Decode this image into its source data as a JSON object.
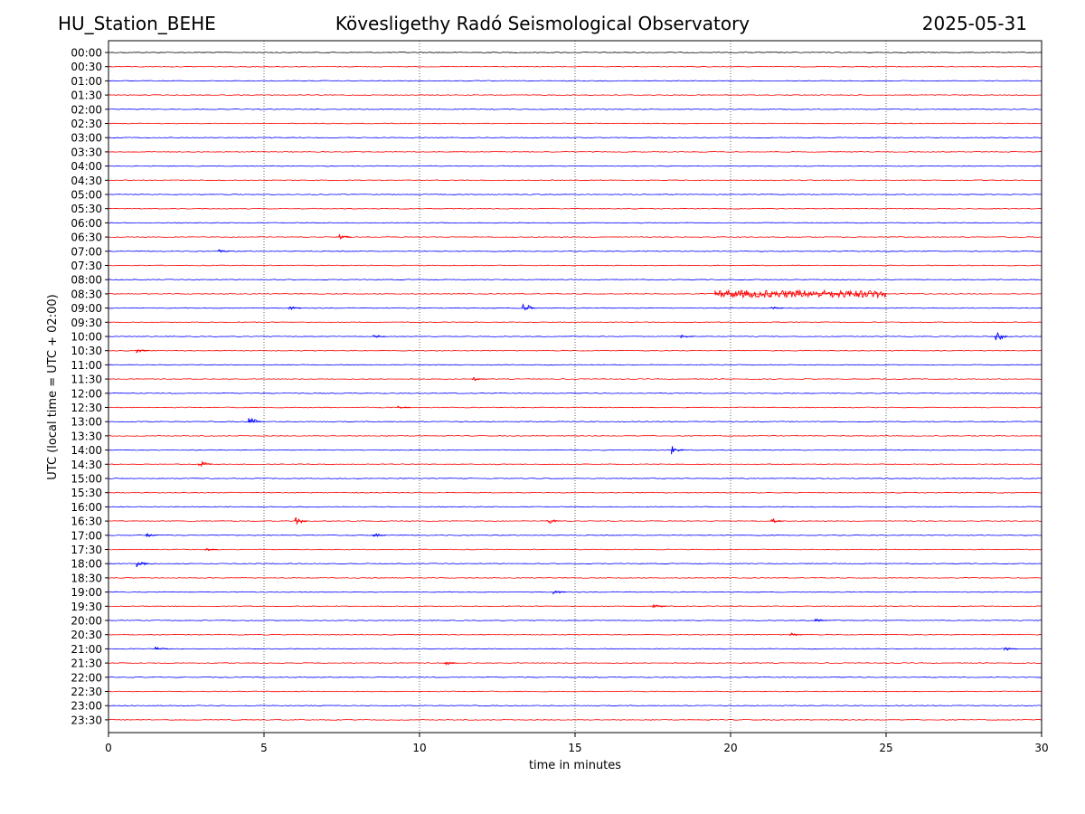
{
  "header": {
    "station": "HU_Station_BEHE",
    "observatory": "Kövesligethy Radó Seismological Observatory",
    "date": "2025-05-31"
  },
  "chart_data": {
    "type": "line",
    "xlabel": "time in minutes",
    "ylabel": "UTC (local time = UTC + 02:00)",
    "xlim": [
      0,
      30
    ],
    "x_ticks": [
      "0",
      "5",
      "10",
      "15",
      "20",
      "25",
      "30"
    ],
    "row_labels": [
      "00:00",
      "00:30",
      "01:00",
      "01:30",
      "02:00",
      "02:30",
      "03:00",
      "03:30",
      "04:00",
      "04:30",
      "05:00",
      "05:30",
      "06:00",
      "06:30",
      "07:00",
      "07:30",
      "08:00",
      "08:30",
      "09:00",
      "09:30",
      "10:00",
      "10:30",
      "11:00",
      "11:30",
      "12:00",
      "12:30",
      "13:00",
      "13:30",
      "14:00",
      "14:30",
      "15:00",
      "15:30",
      "16:00",
      "16:30",
      "17:00",
      "17:30",
      "18:00",
      "18:30",
      "19:00",
      "19:30",
      "20:00",
      "20:30",
      "21:00",
      "21:30",
      "22:00",
      "22:30",
      "23:00",
      "23:30"
    ],
    "grid": "vertical dotted lines at 5-minute intervals",
    "colors": {
      "even_rows": "#0000ff",
      "odd_rows": "#ff0000",
      "top_row": "#000000"
    },
    "events": [
      {
        "row": 13,
        "t": 7.4,
        "amp": 3
      },
      {
        "row": 14,
        "t": 3.5,
        "amp": 2
      },
      {
        "row": 17,
        "t": 19.5,
        "t_end": 25.0,
        "amp": 4
      },
      {
        "row": 18,
        "t": 13.3,
        "amp": 6
      },
      {
        "row": 18,
        "t": 5.8,
        "amp": 2
      },
      {
        "row": 18,
        "t": 21.3,
        "amp": 2
      },
      {
        "row": 20,
        "t": 8.5,
        "amp": 2
      },
      {
        "row": 20,
        "t": 18.4,
        "amp": 2
      },
      {
        "row": 20,
        "t": 28.5,
        "amp": 6
      },
      {
        "row": 21,
        "t": 0.9,
        "amp": 3
      },
      {
        "row": 23,
        "t": 11.7,
        "amp": 2
      },
      {
        "row": 25,
        "t": 9.3,
        "amp": 2
      },
      {
        "row": 26,
        "t": 4.5,
        "amp": 5
      },
      {
        "row": 28,
        "t": 18.1,
        "amp": 5
      },
      {
        "row": 29,
        "t": 2.9,
        "amp": 5
      },
      {
        "row": 33,
        "t": 6.0,
        "amp": 4
      },
      {
        "row": 33,
        "t": 14.1,
        "amp": 3
      },
      {
        "row": 33,
        "t": 21.3,
        "amp": 3
      },
      {
        "row": 34,
        "t": 1.2,
        "amp": 2
      },
      {
        "row": 34,
        "t": 8.5,
        "amp": 2
      },
      {
        "row": 35,
        "t": 3.1,
        "amp": 2
      },
      {
        "row": 36,
        "t": 0.9,
        "amp": 4
      },
      {
        "row": 38,
        "t": 14.3,
        "amp": 2
      },
      {
        "row": 39,
        "t": 17.5,
        "amp": 2
      },
      {
        "row": 40,
        "t": 22.7,
        "amp": 2
      },
      {
        "row": 41,
        "t": 21.9,
        "amp": 2
      },
      {
        "row": 42,
        "t": 1.5,
        "amp": 2
      },
      {
        "row": 42,
        "t": 28.8,
        "amp": 2
      },
      {
        "row": 43,
        "t": 10.8,
        "amp": 2
      }
    ]
  }
}
